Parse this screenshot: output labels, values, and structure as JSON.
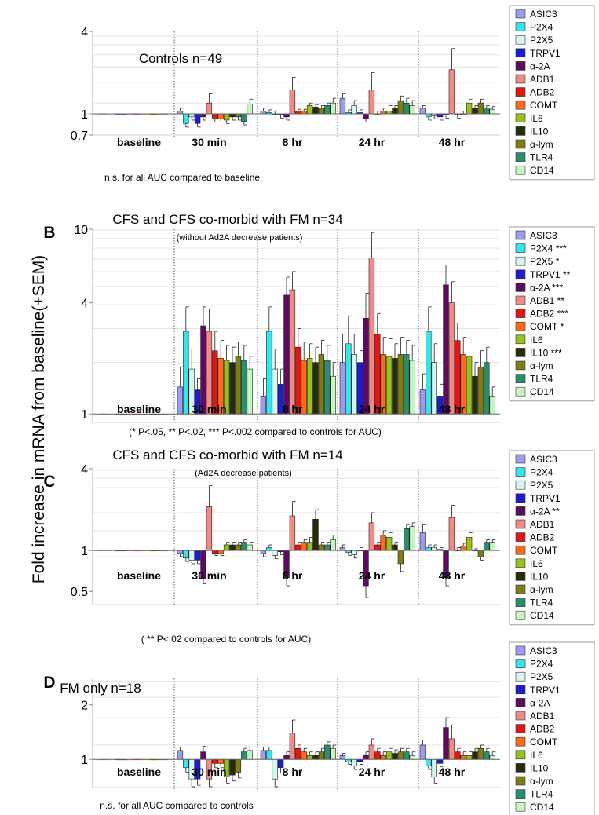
{
  "y_axis_label": "Fold increase in mRNA from baseline(+SEM)",
  "colors": {
    "ASIC3": "#9b9bf0",
    "P2X4": "#33e6ee",
    "P2X5": "#d6f6f2",
    "TRPV1": "#1c1cd6",
    "α-2A": "#5e0a5e",
    "ADB1": "#f08a86",
    "ADB2": "#e41612",
    "COMT": "#ff6a1a",
    "IL6": "#99c11d",
    "IL10": "#262d06",
    "α-lym": "#7f7e16",
    "TLR4": "#2a8f6e",
    "CD14": "#c8f4c4"
  },
  "chart_data": [
    {
      "type": "bar",
      "panel_letter": "",
      "title": "Controls n=49",
      "subtitle": "",
      "footnote": "n.s. for all AUC compared to baseline",
      "scale": "log",
      "ylim": [
        0.7,
        4
      ],
      "yticks": [
        0.7,
        1,
        4
      ],
      "categories": [
        "baseline",
        "30 min",
        "8 hr",
        "24 hr",
        "48 hr"
      ],
      "legend": [
        "ASIC3",
        "P2X4",
        "P2X5",
        "TRPV1",
        "α-2A",
        "ADB1",
        "ADB2",
        "COMT",
        "IL6",
        "IL10",
        "α-lym",
        "TLR4",
        "CD14"
      ],
      "series": [
        {
          "name": "ASIC3",
          "values": [
            1,
            1.05,
            1.05,
            1.3,
            1.1
          ],
          "errors": [
            0,
            0.05,
            0.05,
            0.1,
            0.05
          ]
        },
        {
          "name": "P2X4",
          "values": [
            1,
            0.85,
            1.02,
            1.02,
            0.95
          ],
          "errors": [
            0,
            0.05,
            0.05,
            0.05,
            0.05
          ]
        },
        {
          "name": "P2X5",
          "values": [
            1,
            0.95,
            1.0,
            1.15,
            0.97
          ],
          "errors": [
            0,
            0.05,
            0.05,
            0.1,
            0.05
          ]
        },
        {
          "name": "TRPV1",
          "values": [
            1,
            0.85,
            0.98,
            1.02,
            0.95
          ],
          "errors": [
            0,
            0.05,
            0.05,
            0.05,
            0.05
          ]
        },
        {
          "name": "α-2A",
          "values": [
            1,
            0.95,
            0.95,
            0.92,
            0.98
          ],
          "errors": [
            0,
            0.05,
            0.05,
            0.05,
            0.05
          ]
        },
        {
          "name": "ADB1",
          "values": [
            1,
            1.2,
            1.5,
            1.5,
            2.1
          ],
          "errors": [
            0,
            0.2,
            0.35,
            0.5,
            0.9
          ]
        },
        {
          "name": "ADB2",
          "values": [
            1,
            0.92,
            1.05,
            1.0,
            0.98
          ],
          "errors": [
            0,
            0.05,
            0.03,
            0.05,
            0.05
          ]
        },
        {
          "name": "COMT",
          "values": [
            1,
            0.92,
            1.05,
            1.05,
            1.0
          ],
          "errors": [
            0,
            0.05,
            0.03,
            0.05,
            0.05
          ]
        },
        {
          "name": "IL6",
          "values": [
            1,
            0.9,
            1.15,
            1.05,
            1.2
          ],
          "errors": [
            0,
            0.05,
            0.05,
            0.1,
            0.08
          ]
        },
        {
          "name": "IL10",
          "values": [
            1,
            0.95,
            1.12,
            1.1,
            1.1
          ],
          "errors": [
            0,
            0.05,
            0.05,
            0.05,
            0.05
          ]
        },
        {
          "name": "α-lym",
          "values": [
            1,
            0.95,
            1.1,
            1.25,
            1.2
          ],
          "errors": [
            0,
            0.05,
            0.05,
            0.1,
            0.08
          ]
        },
        {
          "name": "TLR4",
          "values": [
            1,
            0.88,
            1.15,
            1.2,
            1.1
          ],
          "errors": [
            0,
            0.05,
            0.05,
            0.1,
            0.05
          ]
        },
        {
          "name": "CD14",
          "values": [
            1,
            1.18,
            1.2,
            1.15,
            1.08
          ],
          "errors": [
            0,
            0.1,
            0.1,
            0.1,
            0.05
          ]
        }
      ]
    },
    {
      "type": "bar",
      "panel_letter": "B",
      "title": "CFS and CFS co-morbid with FM n=34",
      "subtitle": "(without Ad2A decrease patients)",
      "footnote": "(* P<.05, ** P<.02, *** P<.002 compared to controls for AUC)",
      "scale": "log",
      "ylim": [
        0.9,
        10
      ],
      "yticks": [
        1,
        4,
        10
      ],
      "categories": [
        "baseline",
        "30 min",
        "8 hr",
        "24 hr",
        "48 hr"
      ],
      "legend": [
        "ASIC3",
        "P2X4 ***",
        "P2X5 *",
        "TRPV1 **",
        "α-2A ***",
        "ADB1 **",
        "ADB2 ***",
        "COMT *",
        "IL6",
        "IL10 ***",
        "α-lym",
        "TLR4",
        "CD14"
      ],
      "series": [
        {
          "name": "ASIC3",
          "values": [
            1,
            1.4,
            1.25,
            1.9,
            1.35
          ],
          "errors": [
            0,
            0.4,
            0.3,
            0.8,
            0.3
          ]
        },
        {
          "name": "P2X4",
          "values": [
            1,
            2.8,
            2.8,
            2.4,
            2.8
          ],
          "errors": [
            0,
            1.0,
            1.0,
            1.0,
            1.0
          ]
        },
        {
          "name": "P2X5",
          "values": [
            1,
            1.75,
            1.75,
            2.1,
            1.9
          ],
          "errors": [
            0,
            0.5,
            0.5,
            0.6,
            0.5
          ]
        },
        {
          "name": "TRPV1",
          "values": [
            1,
            1.35,
            1.45,
            1.9,
            1.25
          ],
          "errors": [
            0,
            0.2,
            0.3,
            0.3,
            0.2
          ]
        },
        {
          "name": "α-2A",
          "values": [
            1,
            3.0,
            4.4,
            3.3,
            5.0
          ],
          "errors": [
            0,
            0.8,
            1.1,
            1.2,
            1.4
          ]
        },
        {
          "name": "ADB1",
          "values": [
            1,
            2.8,
            4.7,
            7.0,
            4.0
          ],
          "errors": [
            0,
            0.9,
            1.2,
            2.6,
            1.2
          ]
        },
        {
          "name": "ADB2",
          "values": [
            1,
            2.2,
            2.3,
            2.7,
            2.5
          ],
          "errors": [
            0,
            0.6,
            0.6,
            0.8,
            0.6
          ]
        },
        {
          "name": "COMT",
          "values": [
            1,
            2.0,
            1.95,
            2.1,
            2.1
          ],
          "errors": [
            0,
            0.5,
            0.5,
            0.5,
            0.5
          ]
        },
        {
          "name": "IL6",
          "values": [
            1,
            1.95,
            2.0,
            2.05,
            2.05
          ],
          "errors": [
            0,
            0.4,
            0.4,
            0.5,
            0.4
          ]
        },
        {
          "name": "IL10",
          "values": [
            1,
            1.9,
            1.9,
            2.0,
            1.6
          ],
          "errors": [
            0,
            0.4,
            0.4,
            0.4,
            0.3
          ]
        },
        {
          "name": "α-lym",
          "values": [
            1,
            2.05,
            2.1,
            2.1,
            1.8
          ],
          "errors": [
            0,
            0.4,
            0.4,
            0.5,
            0.4
          ]
        },
        {
          "name": "TLR4",
          "values": [
            1,
            1.95,
            1.95,
            2.1,
            1.9
          ],
          "errors": [
            0,
            0.4,
            0.4,
            0.4,
            0.4
          ]
        },
        {
          "name": "CD14",
          "values": [
            1,
            1.75,
            1.6,
            1.95,
            1.25
          ],
          "errors": [
            0,
            0.3,
            0.3,
            0.4,
            0.15
          ]
        }
      ]
    },
    {
      "type": "bar",
      "panel_letter": "C",
      "title": "CFS and CFS co-morbid with FM n=14",
      "subtitle": "(Ad2A decrease patients)",
      "footnote": "( ** P<.02 compared to controls for AUC)",
      "scale": "log",
      "ylim": [
        0.4,
        4
      ],
      "yticks": [
        0.5,
        1,
        4
      ],
      "categories": [
        "baseline",
        "30 min",
        "8 hr",
        "24 hr",
        "48 hr"
      ],
      "legend": [
        "ASIC3",
        "P2X4",
        "P2X5",
        "TRPV1",
        "α-2A **",
        "ADB1",
        "ADB2",
        "COMT",
        "IL6",
        "IL10",
        "α-lym",
        "TLR4",
        "CD14"
      ],
      "series": [
        {
          "name": "ASIC3",
          "values": [
            1,
            0.95,
            0.95,
            1.05,
            1.35
          ],
          "errors": [
            0,
            0.05,
            0.05,
            0.05,
            0.2
          ]
        },
        {
          "name": "P2X4",
          "values": [
            1,
            0.88,
            1.05,
            0.97,
            1.05
          ],
          "errors": [
            0,
            0.05,
            0.05,
            0.05,
            0.05
          ]
        },
        {
          "name": "P2X5",
          "values": [
            1,
            0.85,
            0.92,
            0.93,
            1.05
          ],
          "errors": [
            0,
            0.05,
            0.05,
            0.05,
            0.05
          ]
        },
        {
          "name": "TRPV1",
          "values": [
            1,
            0.85,
            0.98,
            1.0,
            1.02
          ],
          "errors": [
            0,
            0.05,
            0.05,
            0.05,
            0.03
          ]
        },
        {
          "name": "α-2A",
          "values": [
            1,
            0.62,
            0.63,
            0.55,
            0.63
          ],
          "errors": [
            0,
            0.05,
            0.08,
            0.1,
            0.08
          ]
        },
        {
          "name": "ADB1",
          "values": [
            1,
            2.1,
            1.8,
            1.6,
            1.75
          ],
          "errors": [
            0,
            0.9,
            0.5,
            0.3,
            0.4
          ]
        },
        {
          "name": "ADB2",
          "values": [
            1,
            0.95,
            1.1,
            1.1,
            1.0
          ],
          "errors": [
            0,
            0.03,
            0.05,
            0.05,
            0.05
          ]
        },
        {
          "name": "COMT",
          "values": [
            1,
            0.95,
            1.15,
            1.3,
            1.08
          ],
          "errors": [
            0,
            0.03,
            0.05,
            0.1,
            0.05
          ]
        },
        {
          "name": "IL6",
          "values": [
            1,
            1.1,
            1.15,
            1.25,
            1.25
          ],
          "errors": [
            0,
            0.05,
            0.1,
            0.1,
            0.1
          ]
        },
        {
          "name": "IL10",
          "values": [
            1,
            1.1,
            1.7,
            1.1,
            1.0
          ],
          "errors": [
            0,
            0.05,
            0.3,
            0.05,
            0.03
          ]
        },
        {
          "name": "α-lym",
          "values": [
            1,
            1.1,
            1.1,
            0.8,
            0.9
          ],
          "errors": [
            0,
            0.05,
            0.05,
            0.1,
            0.05
          ]
        },
        {
          "name": "TLR4",
          "values": [
            1,
            1.15,
            1.1,
            1.45,
            1.15
          ],
          "errors": [
            0,
            0.05,
            0.05,
            0.1,
            0.05
          ]
        },
        {
          "name": "CD14",
          "values": [
            1,
            1.1,
            1.2,
            1.5,
            1.15
          ],
          "errors": [
            0,
            0.05,
            0.1,
            0.1,
            0.05
          ]
        }
      ]
    },
    {
      "type": "bar",
      "panel_letter": "D",
      "title": "FM only n=18",
      "subtitle": "",
      "footnote": "n.s. for all AUC compared to controls",
      "scale": "log",
      "ylim": [
        0.7,
        2.8
      ],
      "yticks": [
        1,
        2
      ],
      "categories": [
        "baseline",
        "30 min",
        "8 hr",
        "24 hr",
        "48 hr"
      ],
      "legend": [
        "ASIC3",
        "P2X4",
        "P2X5",
        "TRPV1",
        "α-2A",
        "ADB1",
        "ADB2",
        "COMT",
        "IL6",
        "IL10",
        "α-lym",
        "TLR4",
        "CD14"
      ],
      "series": [
        {
          "name": "ASIC3",
          "values": [
            1,
            1.12,
            1.12,
            1.05,
            1.2
          ],
          "errors": [
            0,
            0.05,
            0.05,
            0.03,
            0.08
          ]
        },
        {
          "name": "P2X4",
          "values": [
            1,
            0.9,
            1.12,
            0.97,
            0.92
          ],
          "errors": [
            0,
            0.05,
            0.05,
            0.03,
            0.04
          ]
        },
        {
          "name": "P2X5",
          "values": [
            1,
            0.78,
            0.78,
            0.92,
            0.8
          ],
          "errors": [
            0,
            0.08,
            0.1,
            0.04,
            0.06
          ]
        },
        {
          "name": "TRPV1",
          "values": [
            1,
            0.78,
            0.9,
            0.97,
            0.95
          ],
          "errors": [
            0,
            0.06,
            0.06,
            0.03,
            0.04
          ]
        },
        {
          "name": "α-2A",
          "values": [
            1,
            1.1,
            1.05,
            1.05,
            1.5
          ],
          "errors": [
            0,
            0.08,
            0.05,
            0.05,
            0.2
          ]
        },
        {
          "name": "ADB1",
          "values": [
            1,
            0.78,
            1.4,
            1.2,
            1.3
          ],
          "errors": [
            0,
            0.1,
            0.25,
            0.1,
            0.25
          ]
        },
        {
          "name": "ADB2",
          "values": [
            1,
            0.95,
            1.15,
            1.1,
            1.1
          ],
          "errors": [
            0,
            0.05,
            0.05,
            0.05,
            0.05
          ]
        },
        {
          "name": "COMT",
          "values": [
            1,
            0.95,
            1.1,
            1.05,
            1.05
          ],
          "errors": [
            0,
            0.05,
            0.05,
            0.05,
            0.05
          ]
        },
        {
          "name": "IL6",
          "values": [
            1,
            0.8,
            1.05,
            1.1,
            1.05
          ],
          "errors": [
            0,
            0.06,
            0.05,
            0.05,
            0.05
          ]
        },
        {
          "name": "IL10",
          "values": [
            1,
            0.82,
            1.05,
            1.08,
            1.1
          ],
          "errors": [
            0,
            0.06,
            0.05,
            0.05,
            0.05
          ]
        },
        {
          "name": "α-lym",
          "values": [
            1,
            0.85,
            1.1,
            1.1,
            1.15
          ],
          "errors": [
            0,
            0.06,
            0.05,
            0.05,
            0.05
          ]
        },
        {
          "name": "TLR4",
          "values": [
            1,
            1.1,
            1.2,
            1.1,
            1.1
          ],
          "errors": [
            0,
            0.05,
            0.05,
            0.05,
            0.05
          ]
        },
        {
          "name": "CD14",
          "values": [
            1,
            1.12,
            1.15,
            1.05,
            1.05
          ],
          "errors": [
            0,
            0.05,
            0.05,
            0.05,
            0.05
          ]
        }
      ]
    }
  ]
}
